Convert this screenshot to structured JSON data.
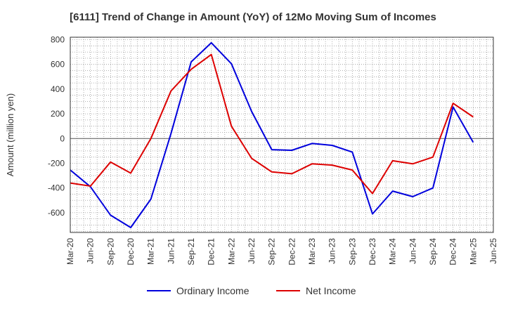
{
  "chart_data": {
    "type": "line",
    "title": "[6111]  Trend of Change in Amount (YoY) of 12Mo Moving Sum of Incomes",
    "xlabel": "",
    "ylabel": "Amount (million yen)",
    "ylim": [
      -760,
      820
    ],
    "yticks": [
      -600,
      -400,
      -200,
      0,
      200,
      400,
      600,
      800
    ],
    "grid": true,
    "legend_position": "bottom",
    "categories": [
      "Mar-20",
      "Jun-20",
      "Sep-20",
      "Dec-20",
      "Mar-21",
      "Jun-21",
      "Sep-21",
      "Dec-21",
      "Mar-22",
      "Jun-22",
      "Sep-22",
      "Dec-22",
      "Mar-23",
      "Jun-23",
      "Sep-23",
      "Dec-23",
      "Mar-24",
      "Jun-24",
      "Sep-24",
      "Dec-24",
      "Mar-25",
      "Jun-25"
    ],
    "series": [
      {
        "name": "Ordinary Income",
        "color": "#0000dd",
        "values": [
          -255,
          -390,
          -620,
          -720,
          -490,
          40,
          620,
          775,
          605,
          220,
          -90,
          -95,
          -40,
          -55,
          -110,
          -610,
          -425,
          -470,
          -400,
          255,
          -30,
          null
        ]
      },
      {
        "name": "Net Income",
        "color": "#dd0000",
        "values": [
          -360,
          -385,
          -190,
          -280,
          0,
          385,
          560,
          680,
          100,
          -160,
          -270,
          -285,
          -205,
          -215,
          -255,
          -445,
          -180,
          -205,
          -150,
          285,
          175,
          null
        ]
      }
    ]
  }
}
